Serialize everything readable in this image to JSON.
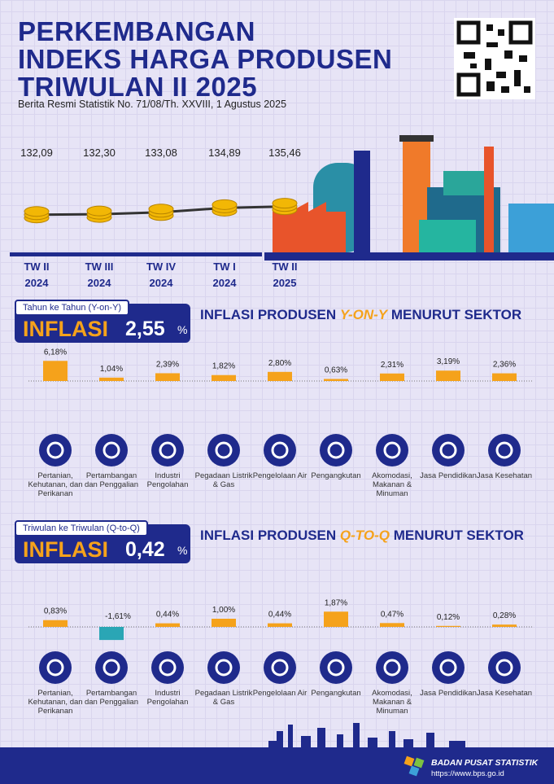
{
  "header": {
    "title_lines": [
      "PERKEMBANGAN",
      "INDEKS HARGA PRODUSEN",
      "TRIWULAN II 2025"
    ],
    "subtitle": "Berita Resmi Statistik No. 71/08/Th. XXVIII, 1 Agustus 2025"
  },
  "yoy_box": {
    "caption": "Tahun ke Tahun (Y-on-Y)",
    "word": "INFLASI",
    "value": "2,55",
    "unit": "%"
  },
  "yoy_heading": [
    "INFLASI PRODUSEN ",
    "Y-ON-Y",
    " MENURUT SEKTOR"
  ],
  "qtq_box": {
    "caption": "Triwulan ke Triwulan (Q-to-Q)",
    "word": "INFLASI",
    "value": "0,42",
    "unit": "%"
  },
  "qtq_heading": [
    "INFLASI PRODUSEN ",
    "Q-TO-Q",
    " MENURUT SEKTOR"
  ],
  "footer": {
    "org": "BADAN PUSAT STATISTIK",
    "url": "https://www.bps.go.id"
  },
  "chart_data": [
    {
      "type": "line",
      "categories": [
        "TW II",
        "TW III",
        "TW IV",
        "TW I",
        "TW II"
      ],
      "years": [
        "2024",
        "2024",
        "2024",
        "2024",
        "2025"
      ],
      "values": [
        132.09,
        132.3,
        133.08,
        134.89,
        135.46
      ],
      "value_labels": [
        "132,09",
        "132,30",
        "133,08",
        "134,89",
        "135,46"
      ],
      "ylim": [
        120,
        145
      ],
      "color": "#333333"
    },
    {
      "type": "bar",
      "categories": [
        "Pertanian, Kehutanan, dan Perikanan",
        "Pertambangan dan Penggalian",
        "Industri Pengolahan",
        "Pegadaan Listrik & Gas",
        "Pengelolaan Air",
        "Pengangkutan",
        "Akomodasi, Makanan & Minuman",
        "Jasa Pendidikan",
        "Jasa Kesehatan"
      ],
      "values": [
        6.18,
        1.04,
        2.39,
        1.82,
        2.8,
        0.63,
        2.31,
        3.19,
        2.36
      ],
      "value_labels": [
        "6,18%",
        "1,04%",
        "2,39%",
        "1,82%",
        "2,80%",
        "0,63%",
        "2,31%",
        "3,19%",
        "2,36%"
      ],
      "ylim": [
        0,
        10
      ],
      "color": "#f5a21b"
    },
    {
      "type": "bar",
      "categories": [
        "Pertanian, Kehutanan, dan Perikanan",
        "Pertambangan dan Penggalian",
        "Industri Pengolahan",
        "Pegadaan Listrik & Gas",
        "Pengelolaan Air",
        "Pengangkutan",
        "Akomodasi, Makanan & Minuman",
        "Jasa Pendidikan",
        "Jasa Kesehatan"
      ],
      "values": [
        0.83,
        -1.61,
        0.44,
        1.0,
        0.44,
        1.87,
        0.47,
        0.12,
        0.28
      ],
      "value_labels": [
        "0,83%",
        "-1,61%",
        "0,44%",
        "1,00%",
        "0,44%",
        "1,87%",
        "0,47%",
        "0,12%",
        "0,28%"
      ],
      "ylim": [
        -4,
        4
      ],
      "color": "#f5a21b"
    }
  ]
}
